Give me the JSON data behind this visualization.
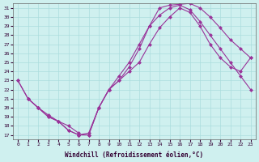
{
  "xlabel": "Windchill (Refroidissement éolien,°C)",
  "bg_color": "#cff0ef",
  "grid_color": "#aadddd",
  "line_color": "#993399",
  "xlim": [
    -0.5,
    23.5
  ],
  "ylim": [
    16.5,
    31.5
  ],
  "xticks": [
    0,
    1,
    2,
    3,
    4,
    5,
    6,
    7,
    8,
    9,
    10,
    11,
    12,
    13,
    14,
    15,
    16,
    17,
    18,
    19,
    20,
    21,
    22,
    23
  ],
  "yticks": [
    17,
    18,
    19,
    20,
    21,
    22,
    23,
    24,
    25,
    26,
    27,
    28,
    29,
    30,
    31
  ],
  "line1_x": [
    0,
    1,
    2,
    3,
    4,
    5,
    6,
    6,
    7,
    8,
    9,
    10,
    11,
    12,
    13,
    14,
    15,
    16,
    17,
    18,
    19,
    20,
    21,
    22,
    23
  ],
  "line1_y": [
    23,
    21,
    20,
    19,
    18.5,
    18,
    17.2,
    17,
    17.2,
    20,
    22,
    23,
    24.5,
    26.5,
    29,
    31,
    31.3,
    31.4,
    31.5,
    31,
    30,
    28.8,
    27.5,
    26.5,
    25.5
  ],
  "line2_x": [
    0,
    1,
    2,
    3,
    4,
    5,
    6,
    7,
    8,
    9,
    10,
    11,
    12,
    13,
    14,
    15,
    16,
    17,
    18,
    19,
    20,
    21,
    22,
    23
  ],
  "line2_y": [
    23,
    21,
    20,
    19.2,
    18.5,
    17.5,
    17,
    17,
    20,
    22,
    23.5,
    25,
    27,
    29,
    30.2,
    31,
    31.3,
    30.8,
    29.5,
    28,
    26.5,
    25,
    23.5,
    22
  ],
  "line3_x": [
    1,
    2,
    3,
    4,
    5,
    6,
    7,
    8,
    9,
    10,
    11,
    12,
    13,
    14,
    15,
    16,
    17,
    18,
    19,
    20,
    21,
    22,
    23
  ],
  "line3_y": [
    21,
    20,
    19,
    18.5,
    17.5,
    17,
    17,
    20,
    22,
    23,
    24,
    25,
    27,
    28.8,
    30,
    31,
    30.5,
    29,
    27,
    25.5,
    24.5,
    24,
    25.5
  ],
  "marker": "D",
  "marker_size": 2.5,
  "line_width": 0.8
}
